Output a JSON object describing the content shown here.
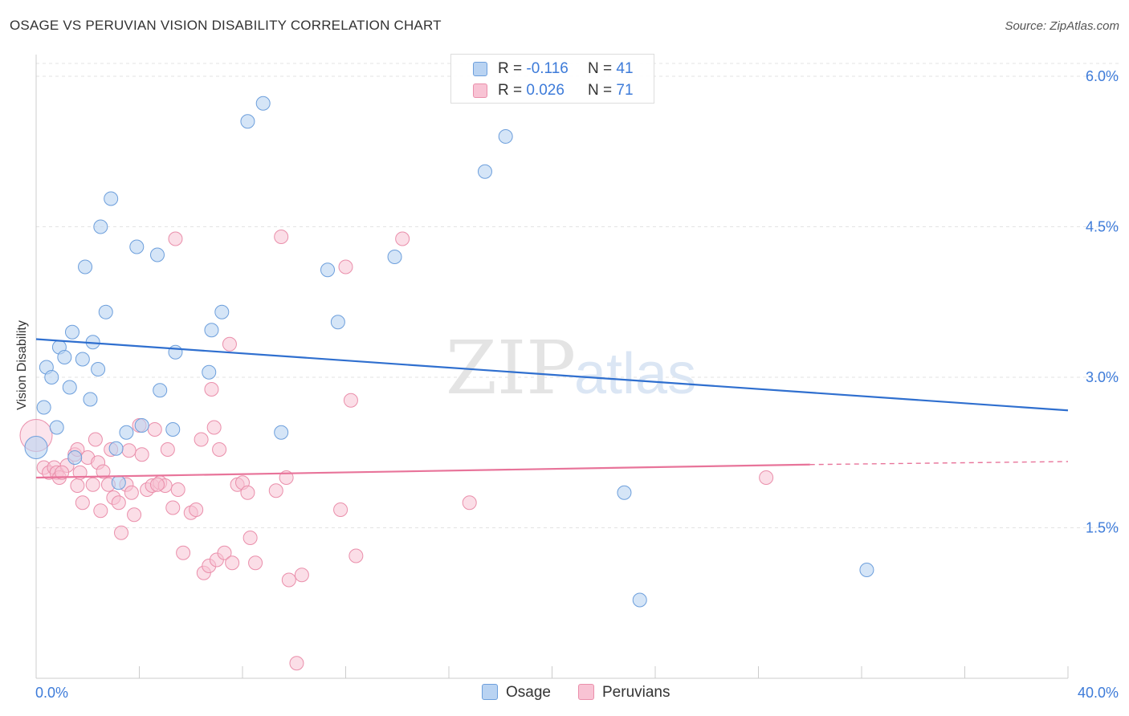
{
  "header": {
    "title": "OSAGE VS PERUVIAN VISION DISABILITY CORRELATION CHART",
    "source": "Source: ZipAtlas.com"
  },
  "watermark": {
    "zip": "ZIP",
    "atlas": "atlas"
  },
  "legend_top": {
    "rows": [
      {
        "r_label": "R = ",
        "r_value": "-0.116",
        "n_label": "N = ",
        "n_value": "41"
      },
      {
        "r_label": "R = ",
        "r_value": "0.026",
        "n_label": "N = ",
        "n_value": "71"
      }
    ]
  },
  "legend_bottom": {
    "osage": "Osage",
    "peruvians": "Peruvians"
  },
  "colors": {
    "osage_fill": "#b9d3f2",
    "osage_stroke": "#6d9fdc",
    "osage_line": "#2f6fcf",
    "peru_fill": "#f8c3d4",
    "peru_stroke": "#ea8fab",
    "peru_line": "#e8749a",
    "tick_label": "#3d7bd9",
    "grid": "#e3e3e3"
  },
  "chart_data": {
    "type": "scatter",
    "title": "OSAGE VS PERUVIAN VISION DISABILITY CORRELATION CHART",
    "ylabel": "Vision Disability",
    "xlabel": "",
    "xlim": [
      0,
      40
    ],
    "ylim": [
      0,
      6.2
    ],
    "x_tick_labels": [
      "0.0%",
      "40.0%"
    ],
    "y_ticks": [
      1.5,
      3.0,
      4.5,
      6.0
    ],
    "y_tick_labels": [
      "1.5%",
      "3.0%",
      "4.5%",
      "6.0%"
    ],
    "grid": "horizontal dashed",
    "series": [
      {
        "name": "Osage",
        "points": [
          [
            0.0,
            2.3
          ],
          [
            0.3,
            2.7
          ],
          [
            0.4,
            3.1
          ],
          [
            0.6,
            3.0
          ],
          [
            0.8,
            2.5
          ],
          [
            0.9,
            3.3
          ],
          [
            1.1,
            3.2
          ],
          [
            1.3,
            2.9
          ],
          [
            1.4,
            3.45
          ],
          [
            1.8,
            3.18
          ],
          [
            1.9,
            4.1
          ],
          [
            2.1,
            2.78
          ],
          [
            2.2,
            3.35
          ],
          [
            2.4,
            3.08
          ],
          [
            2.5,
            4.5
          ],
          [
            2.7,
            3.65
          ],
          [
            2.9,
            4.78
          ],
          [
            3.1,
            2.29
          ],
          [
            3.2,
            1.95
          ],
          [
            3.5,
            2.45
          ],
          [
            3.9,
            4.3
          ],
          [
            4.1,
            2.52
          ],
          [
            4.7,
            4.22
          ],
          [
            4.8,
            2.87
          ],
          [
            5.3,
            2.48
          ],
          [
            5.4,
            3.25
          ],
          [
            6.7,
            3.05
          ],
          [
            6.8,
            3.47
          ],
          [
            7.2,
            3.65
          ],
          [
            8.2,
            5.55
          ],
          [
            8.8,
            5.73
          ],
          [
            9.5,
            2.45
          ],
          [
            11.3,
            4.07
          ],
          [
            11.7,
            3.55
          ],
          [
            13.9,
            4.2
          ],
          [
            17.4,
            5.05
          ],
          [
            18.2,
            5.4
          ],
          [
            22.8,
            1.85
          ],
          [
            23.4,
            0.78
          ],
          [
            32.2,
            1.08
          ],
          [
            1.5,
            2.2
          ]
        ]
      },
      {
        "name": "Peruvians",
        "points": [
          [
            0.0,
            2.42
          ],
          [
            0.3,
            2.1
          ],
          [
            0.5,
            2.05
          ],
          [
            0.7,
            2.1
          ],
          [
            0.8,
            2.05
          ],
          [
            0.9,
            2.0
          ],
          [
            1.2,
            2.12
          ],
          [
            1.5,
            2.23
          ],
          [
            1.6,
            2.28
          ],
          [
            1.6,
            1.92
          ],
          [
            1.7,
            2.05
          ],
          [
            1.8,
            1.75
          ],
          [
            2.0,
            2.2
          ],
          [
            2.2,
            1.93
          ],
          [
            2.3,
            2.38
          ],
          [
            2.4,
            2.15
          ],
          [
            2.5,
            1.67
          ],
          [
            2.6,
            2.06
          ],
          [
            2.8,
            1.93
          ],
          [
            2.9,
            2.28
          ],
          [
            3.0,
            1.8
          ],
          [
            3.2,
            1.75
          ],
          [
            3.3,
            1.45
          ],
          [
            3.5,
            1.93
          ],
          [
            3.6,
            2.27
          ],
          [
            3.7,
            1.85
          ],
          [
            3.8,
            1.63
          ],
          [
            4.0,
            2.52
          ],
          [
            4.1,
            2.23
          ],
          [
            4.3,
            1.88
          ],
          [
            4.5,
            1.92
          ],
          [
            4.6,
            2.48
          ],
          [
            4.8,
            1.95
          ],
          [
            5.0,
            1.92
          ],
          [
            5.1,
            2.28
          ],
          [
            5.3,
            1.7
          ],
          [
            5.4,
            4.38
          ],
          [
            5.5,
            1.88
          ],
          [
            5.7,
            1.25
          ],
          [
            6.0,
            1.65
          ],
          [
            6.2,
            1.68
          ],
          [
            6.4,
            2.38
          ],
          [
            6.5,
            1.05
          ],
          [
            6.7,
            1.12
          ],
          [
            6.8,
            2.88
          ],
          [
            6.9,
            2.5
          ],
          [
            7.0,
            1.18
          ],
          [
            7.1,
            2.28
          ],
          [
            7.3,
            1.25
          ],
          [
            7.5,
            3.33
          ],
          [
            7.6,
            1.15
          ],
          [
            7.8,
            1.93
          ],
          [
            8.0,
            1.95
          ],
          [
            8.2,
            1.85
          ],
          [
            8.3,
            1.4
          ],
          [
            8.5,
            1.15
          ],
          [
            9.3,
            1.87
          ],
          [
            9.5,
            4.4
          ],
          [
            9.7,
            2.0
          ],
          [
            9.8,
            0.98
          ],
          [
            10.1,
            0.15
          ],
          [
            10.3,
            1.03
          ],
          [
            11.8,
            1.68
          ],
          [
            12.0,
            4.1
          ],
          [
            12.2,
            2.77
          ],
          [
            12.4,
            1.22
          ],
          [
            14.2,
            4.38
          ],
          [
            16.8,
            1.75
          ],
          [
            28.3,
            2.0
          ],
          [
            1.0,
            2.05
          ],
          [
            4.7,
            1.93
          ]
        ]
      }
    ],
    "trend_lines": [
      {
        "series": "Osage",
        "r": -0.116,
        "n": 41,
        "x": [
          0,
          40
        ],
        "y": [
          3.38,
          2.67
        ]
      },
      {
        "series": "Peruvians",
        "r": 0.026,
        "n": 71,
        "x": [
          0,
          30
        ],
        "y": [
          2.0,
          2.13
        ],
        "dashed_extension_to": 40,
        "dashed_end_y": 2.16
      }
    ]
  }
}
